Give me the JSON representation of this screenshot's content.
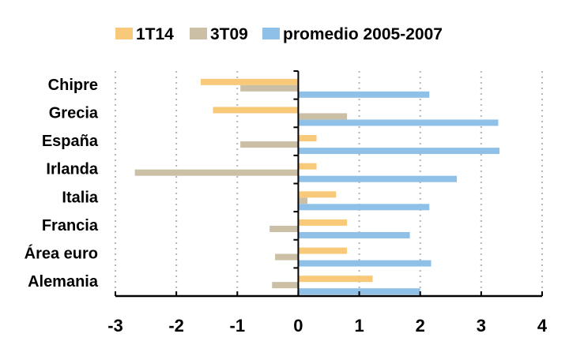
{
  "chart_data": {
    "type": "bar",
    "orientation": "horizontal",
    "categories": [
      "Chipre",
      "Grecia",
      "España",
      "Irlanda",
      "Italia",
      "Francia",
      "Área euro",
      "Alemania"
    ],
    "series": [
      {
        "name": "1T14",
        "color": "#F9C97A",
        "values": [
          -1.6,
          -1.4,
          0.3,
          0.3,
          0.62,
          0.8,
          0.8,
          1.22
        ]
      },
      {
        "name": "3T09",
        "color": "#CBBFA6",
        "values": [
          -0.95,
          0.8,
          -0.95,
          -2.68,
          0.15,
          -0.47,
          -0.38,
          -0.43
        ]
      },
      {
        "name": "promedio 2005-2007",
        "color": "#8FC1E8",
        "values": [
          2.15,
          3.28,
          3.3,
          2.6,
          2.15,
          1.83,
          2.18,
          2.0
        ]
      }
    ],
    "xlim": [
      -3,
      4
    ],
    "xticks": [
      "-3",
      "-2",
      "-1",
      "0",
      "1",
      "2",
      "3",
      "4"
    ],
    "title": "",
    "xlabel": "",
    "ylabel": "",
    "legend": "top",
    "grid": "vertical-dashed"
  }
}
